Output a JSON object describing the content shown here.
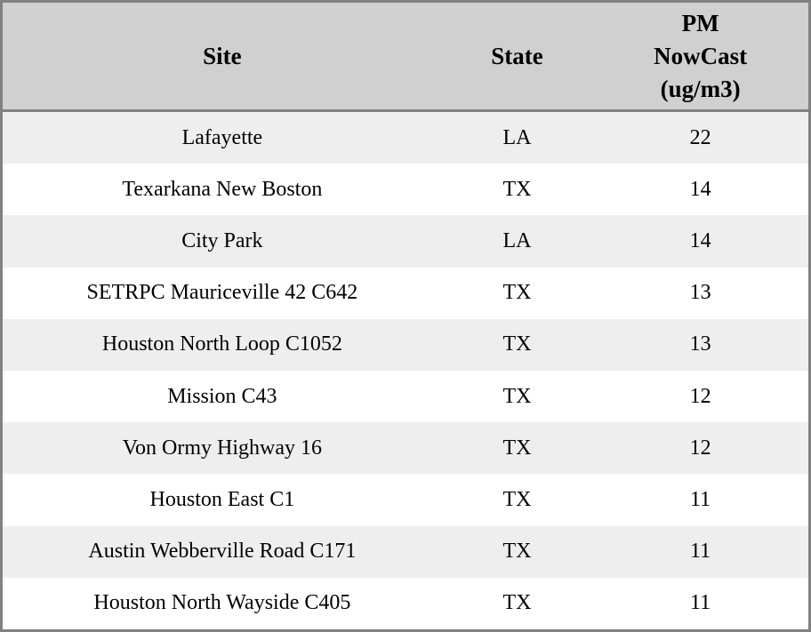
{
  "colors": {
    "outer_border": "#818181",
    "header_bg": "#d0d0d0",
    "row_stripe_bg": "#eeeeee",
    "row_plain_bg": "#ffffff",
    "text": "#000000"
  },
  "table": {
    "columns": [
      {
        "key": "site",
        "label": "Site"
      },
      {
        "key": "state",
        "label": "State"
      },
      {
        "key": "pm",
        "label": "PM\nNowCast\n(ug/m3)"
      }
    ],
    "rows": [
      {
        "site": "Lafayette",
        "state": "LA",
        "pm": "22"
      },
      {
        "site": "Texarkana New Boston",
        "state": "TX",
        "pm": "14"
      },
      {
        "site": "City Park",
        "state": "LA",
        "pm": "14"
      },
      {
        "site": "SETRPC Mauriceville 42 C642",
        "state": "TX",
        "pm": "13"
      },
      {
        "site": "Houston North Loop C1052",
        "state": "TX",
        "pm": "13"
      },
      {
        "site": "Mission C43",
        "state": "TX",
        "pm": "12"
      },
      {
        "site": "Von Ormy Highway 16",
        "state": "TX",
        "pm": "12"
      },
      {
        "site": "Houston East C1",
        "state": "TX",
        "pm": "11"
      },
      {
        "site": "Austin Webberville Road C171",
        "state": "TX",
        "pm": "11"
      },
      {
        "site": "Houston North Wayside C405",
        "state": "TX",
        "pm": "11"
      }
    ]
  },
  "chart_data": {
    "type": "table",
    "title": "",
    "columns": [
      "Site",
      "State",
      "PM NowCast (ug/m3)"
    ],
    "rows": [
      [
        "Lafayette",
        "LA",
        22
      ],
      [
        "Texarkana New Boston",
        "TX",
        14
      ],
      [
        "City Park",
        "LA",
        14
      ],
      [
        "SETRPC Mauriceville 42 C642",
        "TX",
        13
      ],
      [
        "Houston North Loop C1052",
        "TX",
        13
      ],
      [
        "Mission C43",
        "TX",
        12
      ],
      [
        "Von Ormy Highway 16",
        "TX",
        12
      ],
      [
        "Houston East C1",
        "TX",
        11
      ],
      [
        "Austin Webberville Road C171",
        "TX",
        11
      ],
      [
        "Houston North Wayside C405",
        "TX",
        11
      ]
    ],
    "layout": {
      "striped": true,
      "header_position": "top",
      "text_align": "center"
    }
  }
}
